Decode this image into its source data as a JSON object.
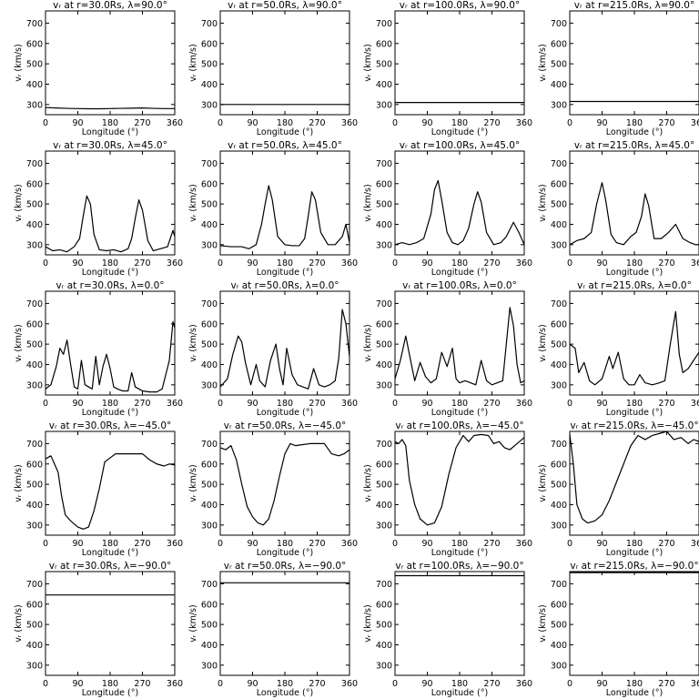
{
  "figure": {
    "ylabel": "vᵣ (km/s)",
    "xlabel": "Longitude (°)"
  },
  "chart_data": [
    {
      "type": "line",
      "title": "vᵣ at r=30.0Rs, λ=90.0°",
      "xlabel": "Longitude (°)",
      "ylabel": "vᵣ (km/s)",
      "xlim": [
        0,
        360
      ],
      "ylim": [
        250,
        760
      ],
      "xticks": [
        0,
        90,
        180,
        270,
        360
      ],
      "yticks": [
        300,
        400,
        500,
        600,
        700
      ],
      "x": [
        0,
        30,
        60,
        90,
        120,
        150,
        180,
        210,
        240,
        270,
        300,
        330,
        360
      ],
      "y": [
        285,
        283,
        281,
        280,
        279,
        279,
        280,
        281,
        282,
        283,
        281,
        280,
        280
      ]
    },
    {
      "type": "line",
      "title": "vᵣ at r=50.0Rs, λ=90.0°",
      "xlabel": "Longitude (°)",
      "ylabel": "vᵣ (km/s)",
      "xlim": [
        0,
        360
      ],
      "ylim": [
        250,
        760
      ],
      "xticks": [
        0,
        90,
        180,
        270,
        360
      ],
      "yticks": [
        300,
        400,
        500,
        600,
        700
      ],
      "x": [
        0,
        360
      ],
      "y": [
        300,
        300
      ]
    },
    {
      "type": "line",
      "title": "vᵣ at r=100.0Rs, λ=90.0°",
      "xlabel": "Longitude (°)",
      "ylabel": "vᵣ (km/s)",
      "xlim": [
        0,
        360
      ],
      "ylim": [
        250,
        760
      ],
      "xticks": [
        0,
        90,
        180,
        270,
        360
      ],
      "yticks": [
        300,
        400,
        500,
        600,
        700
      ],
      "x": [
        0,
        360
      ],
      "y": [
        310,
        310
      ]
    },
    {
      "type": "line",
      "title": "vᵣ at r=215.0Rs, λ=90.0°",
      "xlabel": "Longitude (°)",
      "ylabel": "vᵣ (km/s)",
      "xlim": [
        0,
        360
      ],
      "ylim": [
        250,
        760
      ],
      "xticks": [
        0,
        90,
        180,
        270,
        360
      ],
      "yticks": [
        300,
        400,
        500,
        600,
        700
      ],
      "x": [
        0,
        360
      ],
      "y": [
        315,
        315
      ]
    },
    {
      "type": "line",
      "title": "vᵣ at r=30.0Rs, λ=45.0°",
      "xlabel": "Longitude (°)",
      "ylabel": "vᵣ (km/s)",
      "xlim": [
        0,
        360
      ],
      "ylim": [
        250,
        760
      ],
      "xticks": [
        0,
        90,
        180,
        270,
        360
      ],
      "yticks": [
        300,
        400,
        500,
        600,
        700
      ],
      "x": [
        0,
        20,
        40,
        60,
        80,
        95,
        105,
        115,
        125,
        135,
        150,
        170,
        190,
        210,
        230,
        240,
        250,
        260,
        270,
        285,
        300,
        320,
        340,
        355,
        360
      ],
      "y": [
        290,
        270,
        275,
        265,
        290,
        330,
        440,
        540,
        500,
        350,
        275,
        270,
        275,
        265,
        280,
        330,
        430,
        520,
        470,
        320,
        270,
        280,
        290,
        370,
        340
      ]
    },
    {
      "type": "line",
      "title": "vᵣ at r=50.0Rs, λ=45.0°",
      "xlabel": "Longitude (°)",
      "ylabel": "vᵣ (km/s)",
      "xlim": [
        0,
        360
      ],
      "ylim": [
        250,
        760
      ],
      "xticks": [
        0,
        90,
        180,
        270,
        360
      ],
      "yticks": [
        300,
        400,
        500,
        600,
        700
      ],
      "x": [
        0,
        30,
        60,
        80,
        100,
        115,
        125,
        135,
        145,
        160,
        180,
        200,
        220,
        235,
        245,
        255,
        265,
        280,
        300,
        320,
        340,
        350,
        360
      ],
      "y": [
        295,
        290,
        290,
        280,
        300,
        400,
        500,
        590,
        520,
        340,
        300,
        295,
        295,
        330,
        440,
        560,
        520,
        360,
        300,
        300,
        340,
        400,
        310
      ]
    },
    {
      "type": "line",
      "title": "vᵣ at r=100.0Rs, λ=45.0°",
      "xlabel": "Longitude (°)",
      "ylabel": "vᵣ (km/s)",
      "xlim": [
        0,
        360
      ],
      "ylim": [
        250,
        760
      ],
      "xticks": [
        0,
        90,
        180,
        270,
        360
      ],
      "yticks": [
        300,
        400,
        500,
        600,
        700
      ],
      "x": [
        0,
        20,
        40,
        60,
        80,
        100,
        110,
        120,
        130,
        145,
        160,
        175,
        190,
        205,
        220,
        230,
        240,
        255,
        275,
        295,
        310,
        330,
        345,
        360
      ],
      "y": [
        300,
        310,
        300,
        310,
        330,
        450,
        570,
        615,
        520,
        360,
        310,
        300,
        320,
        380,
        500,
        560,
        510,
        360,
        300,
        310,
        340,
        410,
        360,
        300
      ]
    },
    {
      "type": "line",
      "title": "vᵣ at r=215.0Rs, λ=45.0°",
      "xlabel": "Longitude (°)",
      "ylabel": "vᵣ (km/s)",
      "xlim": [
        0,
        360
      ],
      "ylim": [
        250,
        760
      ],
      "xticks": [
        0,
        90,
        180,
        270,
        360
      ],
      "yticks": [
        300,
        400,
        500,
        600,
        700
      ],
      "x": [
        0,
        20,
        40,
        60,
        75,
        90,
        100,
        115,
        130,
        150,
        170,
        185,
        200,
        210,
        220,
        235,
        255,
        275,
        295,
        315,
        335,
        350,
        360
      ],
      "y": [
        300,
        320,
        330,
        360,
        500,
        605,
        520,
        350,
        310,
        300,
        340,
        360,
        440,
        550,
        490,
        330,
        330,
        360,
        400,
        330,
        310,
        300,
        300
      ]
    },
    {
      "type": "line",
      "title": "vᵣ at r=30.0Rs, λ=0.0°",
      "xlabel": "Longitude (°)",
      "ylabel": "vᵣ (km/s)",
      "xlim": [
        0,
        360
      ],
      "ylim": [
        250,
        760
      ],
      "xticks": [
        0,
        90,
        180,
        270,
        360
      ],
      "yticks": [
        300,
        400,
        500,
        600,
        700
      ],
      "x": [
        0,
        15,
        30,
        40,
        50,
        60,
        70,
        80,
        90,
        100,
        110,
        120,
        130,
        140,
        150,
        160,
        170,
        180,
        190,
        200,
        215,
        230,
        240,
        250,
        260,
        270,
        290,
        310,
        325,
        335,
        345,
        355,
        360
      ],
      "y": [
        280,
        300,
        390,
        480,
        450,
        520,
        400,
        290,
        280,
        420,
        300,
        290,
        280,
        440,
        300,
        390,
        450,
        380,
        290,
        280,
        270,
        270,
        360,
        290,
        280,
        270,
        265,
        265,
        280,
        350,
        420,
        610,
        580
      ]
    },
    {
      "type": "line",
      "title": "vᵣ at r=50.0Rs, λ=0.0°",
      "xlabel": "Longitude (°)",
      "ylabel": "vᵣ (km/s)",
      "xlim": [
        0,
        360
      ],
      "ylim": [
        250,
        760
      ],
      "xticks": [
        0,
        90,
        180,
        270,
        360
      ],
      "yticks": [
        300,
        400,
        500,
        600,
        700
      ],
      "x": [
        0,
        20,
        35,
        50,
        60,
        70,
        85,
        100,
        110,
        125,
        140,
        155,
        165,
        175,
        185,
        200,
        215,
        230,
        245,
        260,
        275,
        290,
        305,
        320,
        330,
        340,
        350,
        360
      ],
      "y": [
        290,
        330,
        450,
        540,
        510,
        410,
        300,
        400,
        320,
        290,
        420,
        500,
        380,
        300,
        480,
        350,
        300,
        290,
        280,
        380,
        300,
        290,
        300,
        320,
        430,
        670,
        600,
        440
      ]
    },
    {
      "type": "line",
      "title": "vᵣ at r=100.0Rs, λ=0.0°",
      "xlabel": "Longitude (°)",
      "ylabel": "vᵣ (km/s)",
      "xlim": [
        0,
        360
      ],
      "ylim": [
        250,
        760
      ],
      "xticks": [
        0,
        90,
        180,
        270,
        360
      ],
      "yticks": [
        300,
        400,
        500,
        600,
        700
      ],
      "x": [
        0,
        15,
        30,
        40,
        55,
        70,
        85,
        100,
        115,
        130,
        145,
        160,
        170,
        180,
        195,
        210,
        225,
        240,
        255,
        270,
        285,
        300,
        320,
        330,
        340,
        350,
        360
      ],
      "y": [
        330,
        420,
        540,
        450,
        320,
        410,
        340,
        310,
        330,
        460,
        390,
        480,
        330,
        310,
        320,
        310,
        300,
        420,
        320,
        300,
        310,
        320,
        680,
        590,
        400,
        310,
        320
      ]
    },
    {
      "type": "line",
      "title": "vᵣ at r=215.0Rs, λ=0.0°",
      "xlabel": "Longitude (°)",
      "ylabel": "vᵣ (km/s)",
      "xlim": [
        0,
        360
      ],
      "ylim": [
        250,
        760
      ],
      "xticks": [
        0,
        90,
        180,
        270,
        360
      ],
      "yticks": [
        300,
        400,
        500,
        600,
        700
      ],
      "x": [
        0,
        15,
        25,
        40,
        55,
        70,
        90,
        110,
        120,
        135,
        150,
        165,
        180,
        195,
        210,
        230,
        250,
        265,
        280,
        295,
        305,
        315,
        330,
        345,
        360
      ],
      "y": [
        500,
        480,
        360,
        410,
        320,
        300,
        330,
        440,
        380,
        460,
        330,
        300,
        300,
        350,
        310,
        300,
        310,
        320,
        500,
        660,
        450,
        360,
        380,
        420,
        460
      ]
    },
    {
      "type": "line",
      "title": "vᵣ at r=30.0Rs, λ=−45.0°",
      "xlabel": "Longitude (°)",
      "ylabel": "vᵣ (km/s)",
      "xlim": [
        0,
        360
      ],
      "ylim": [
        250,
        760
      ],
      "xticks": [
        0,
        90,
        180,
        270,
        360
      ],
      "yticks": [
        300,
        400,
        500,
        600,
        700
      ],
      "x": [
        0,
        15,
        25,
        35,
        45,
        55,
        70,
        90,
        105,
        120,
        135,
        150,
        165,
        180,
        195,
        210,
        230,
        250,
        270,
        290,
        310,
        330,
        345,
        360
      ],
      "y": [
        625,
        640,
        600,
        560,
        440,
        350,
        320,
        290,
        280,
        290,
        370,
        480,
        610,
        630,
        650,
        650,
        650,
        650,
        650,
        620,
        600,
        590,
        600,
        595
      ]
    },
    {
      "type": "line",
      "title": "vᵣ at r=50.0Rs, λ=−45.0°",
      "xlabel": "Longitude (°)",
      "ylabel": "vᵣ (km/s)",
      "xlim": [
        0,
        360
      ],
      "ylim": [
        250,
        760
      ],
      "xticks": [
        0,
        90,
        180,
        270,
        360
      ],
      "yticks": [
        300,
        400,
        500,
        600,
        700
      ],
      "x": [
        0,
        15,
        30,
        45,
        60,
        75,
        90,
        105,
        120,
        135,
        150,
        165,
        180,
        195,
        210,
        230,
        250,
        270,
        290,
        310,
        330,
        345,
        360
      ],
      "y": [
        680,
        670,
        690,
        620,
        500,
        390,
        340,
        310,
        300,
        330,
        420,
        540,
        650,
        700,
        690,
        695,
        700,
        700,
        700,
        650,
        640,
        650,
        670
      ]
    },
    {
      "type": "line",
      "title": "vᵣ at r=100.0Rs, λ=−45.0°",
      "xlabel": "Longitude (°)",
      "ylabel": "vᵣ (km/s)",
      "xlim": [
        0,
        360
      ],
      "ylim": [
        250,
        760
      ],
      "xticks": [
        0,
        90,
        180,
        270,
        360
      ],
      "yticks": [
        300,
        400,
        500,
        600,
        700
      ],
      "x": [
        0,
        10,
        20,
        30,
        40,
        55,
        70,
        90,
        110,
        130,
        150,
        170,
        190,
        205,
        220,
        240,
        260,
        275,
        290,
        305,
        320,
        340,
        360
      ],
      "y": [
        710,
        700,
        720,
        690,
        520,
        400,
        330,
        300,
        310,
        390,
        550,
        680,
        740,
        710,
        740,
        745,
        740,
        700,
        710,
        680,
        670,
        700,
        730
      ]
    },
    {
      "type": "line",
      "title": "vᵣ at r=215.0Rs, λ=−45.0°",
      "xlabel": "Longitude (°)",
      "ylabel": "vᵣ (km/s)",
      "xlim": [
        0,
        360
      ],
      "ylim": [
        250,
        760
      ],
      "xticks": [
        0,
        90,
        180,
        270,
        360
      ],
      "yticks": [
        300,
        400,
        500,
        600,
        700
      ],
      "x": [
        0,
        10,
        20,
        35,
        50,
        70,
        90,
        110,
        130,
        150,
        170,
        190,
        210,
        230,
        250,
        270,
        290,
        310,
        330,
        345,
        360
      ],
      "y": [
        745,
        600,
        400,
        330,
        310,
        320,
        350,
        420,
        510,
        600,
        690,
        740,
        720,
        740,
        750,
        760,
        720,
        730,
        700,
        720,
        710
      ]
    },
    {
      "type": "line",
      "title": "vᵣ at r=30.0Rs, λ=−90.0°",
      "xlabel": "Longitude (°)",
      "ylabel": "vᵣ (km/s)",
      "xlim": [
        0,
        360
      ],
      "ylim": [
        250,
        760
      ],
      "xticks": [
        0,
        90,
        180,
        270,
        360
      ],
      "yticks": [
        300,
        400,
        500,
        600,
        700
      ],
      "x": [
        0,
        360
      ],
      "y": [
        645,
        645
      ]
    },
    {
      "type": "line",
      "title": "vᵣ at r=50.0Rs, λ=−90.0°",
      "xlabel": "Longitude (°)",
      "ylabel": "vᵣ (km/s)",
      "xlim": [
        0,
        360
      ],
      "ylim": [
        250,
        760
      ],
      "xticks": [
        0,
        90,
        180,
        270,
        360
      ],
      "yticks": [
        300,
        400,
        500,
        600,
        700
      ],
      "x": [
        0,
        360
      ],
      "y": [
        705,
        705
      ]
    },
    {
      "type": "line",
      "title": "vᵣ at r=100.0Rs, λ=−90.0°",
      "xlabel": "Longitude (°)",
      "ylabel": "vᵣ (km/s)",
      "xlim": [
        0,
        360
      ],
      "ylim": [
        250,
        760
      ],
      "xticks": [
        0,
        90,
        180,
        270,
        360
      ],
      "yticks": [
        300,
        400,
        500,
        600,
        700
      ],
      "x": [
        0,
        360
      ],
      "y": [
        740,
        740
      ]
    },
    {
      "type": "line",
      "title": "vᵣ at r=215.0Rs, λ=−90.0°",
      "xlabel": "Longitude (°)",
      "ylabel": "vᵣ (km/s)",
      "xlim": [
        0,
        360
      ],
      "ylim": [
        250,
        760
      ],
      "xticks": [
        0,
        90,
        180,
        270,
        360
      ],
      "yticks": [
        300,
        400,
        500,
        600,
        700
      ],
      "x": [
        0,
        360
      ],
      "y": [
        755,
        755
      ]
    }
  ]
}
